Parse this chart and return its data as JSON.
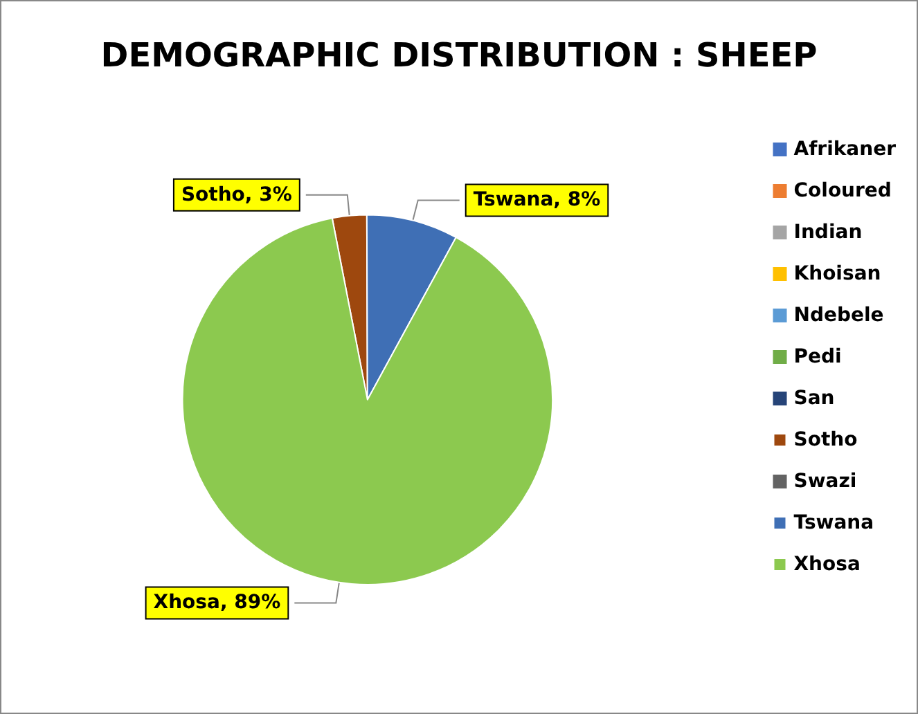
{
  "chart_data": {
    "type": "pie",
    "title": "DEMOGRAPHIC DISTRIBUTION : SHEEP",
    "categories": [
      "Afrikaner",
      "Coloured",
      "Indian",
      "Khoisan",
      "Ndebele",
      "Pedi",
      "San",
      "Sotho",
      "Swazi",
      "Tswana",
      "Xhosa"
    ],
    "values": [
      0,
      0,
      0,
      0,
      0,
      0,
      0,
      3,
      0,
      8,
      89
    ],
    "colors": [
      "#4472c4",
      "#ed7d31",
      "#a5a5a5",
      "#ffc000",
      "#5b9bd5",
      "#70ad47",
      "#264478",
      "#9e480e",
      "#636363",
      "#3f6fb5",
      "#8cc94f"
    ],
    "value_labels": [
      null,
      null,
      null,
      null,
      null,
      null,
      null,
      "Sotho, 3%",
      null,
      "Tswana, 8%",
      "Xhosa, 89%"
    ],
    "legend": "right"
  }
}
